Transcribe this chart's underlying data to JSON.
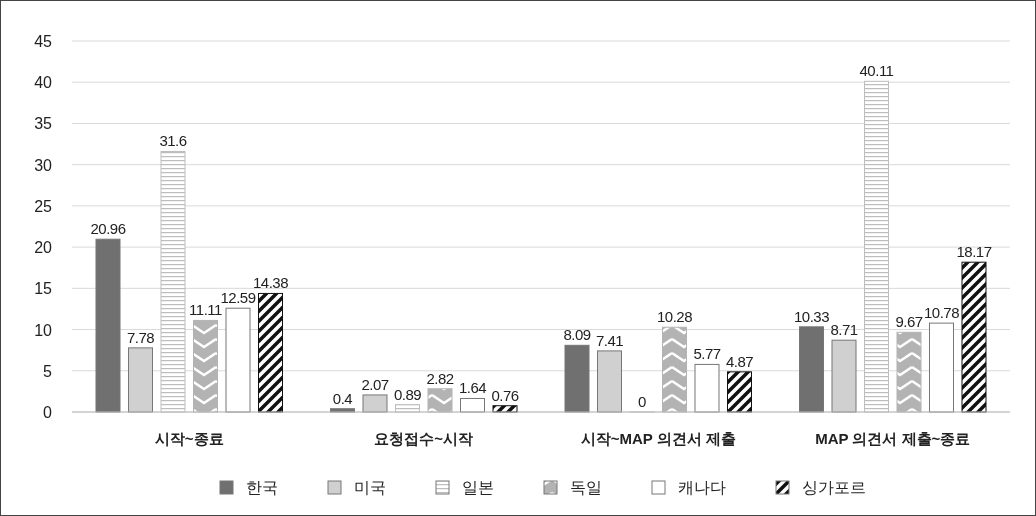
{
  "chart_data": {
    "type": "bar",
    "categories": [
      "시작~종료",
      "요청접수~시작",
      "시작~MAP 의견서 제출",
      "MAP 의견서 제출~종료"
    ],
    "series": [
      {
        "name": "한국",
        "color": "#707070",
        "values": [
          20.96,
          0.4,
          8.09,
          10.33
        ]
      },
      {
        "name": "미국",
        "color": "#d0d0d0",
        "values": [
          7.78,
          2.07,
          7.41,
          8.71
        ]
      },
      {
        "name": "일본",
        "color": "#bdbdbd",
        "values": [
          31.6,
          0.89,
          0,
          40.11
        ]
      },
      {
        "name": "독일",
        "color": "#b3b3b3",
        "values": [
          11.11,
          2.82,
          10.28,
          9.67
        ]
      },
      {
        "name": "캐나다",
        "color": "#ffffff",
        "values": [
          12.59,
          1.64,
          5.77,
          10.78
        ]
      },
      {
        "name": "싱가포르",
        "color": "#111111",
        "values": [
          14.38,
          0.76,
          4.87,
          18.17
        ]
      }
    ],
    "ylim": [
      0,
      45
    ],
    "yticks": [
      0,
      5,
      10,
      15,
      20,
      25,
      30,
      35,
      40,
      45
    ],
    "grid": "y",
    "legend": "bottom",
    "data_labels": true
  }
}
